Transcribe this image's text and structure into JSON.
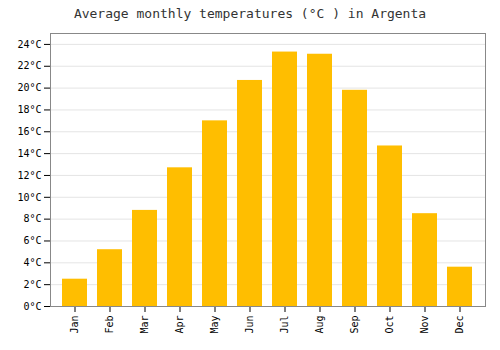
{
  "chart_data": {
    "type": "bar",
    "title": "Average monthly temperatures (°C ) in Argenta",
    "categories": [
      "Jan",
      "Feb",
      "Mar",
      "Apr",
      "May",
      "Jun",
      "Jul",
      "Aug",
      "Sep",
      "Oct",
      "Nov",
      "Dec"
    ],
    "values": [
      2.5,
      5.2,
      8.8,
      12.7,
      17.0,
      20.7,
      23.3,
      23.1,
      19.8,
      14.7,
      8.5,
      3.6
    ],
    "color": "#FFBE00",
    "ylim": [
      0,
      25
    ],
    "yticks": [
      {
        "value": 0,
        "label": "0°C"
      },
      {
        "value": 2,
        "label": "2°C"
      },
      {
        "value": 4,
        "label": "4°C"
      },
      {
        "value": 6,
        "label": "6°C"
      },
      {
        "value": 8,
        "label": "8°C"
      },
      {
        "value": 10,
        "label": "10°C"
      },
      {
        "value": 12,
        "label": "12°C"
      },
      {
        "value": 14,
        "label": "14°C"
      },
      {
        "value": 16,
        "label": "16°C"
      },
      {
        "value": 18,
        "label": "18°C"
      },
      {
        "value": 20,
        "label": "20°C"
      },
      {
        "value": 22,
        "label": "22°C"
      },
      {
        "value": 24,
        "label": "24°C"
      }
    ],
    "grid": true
  }
}
